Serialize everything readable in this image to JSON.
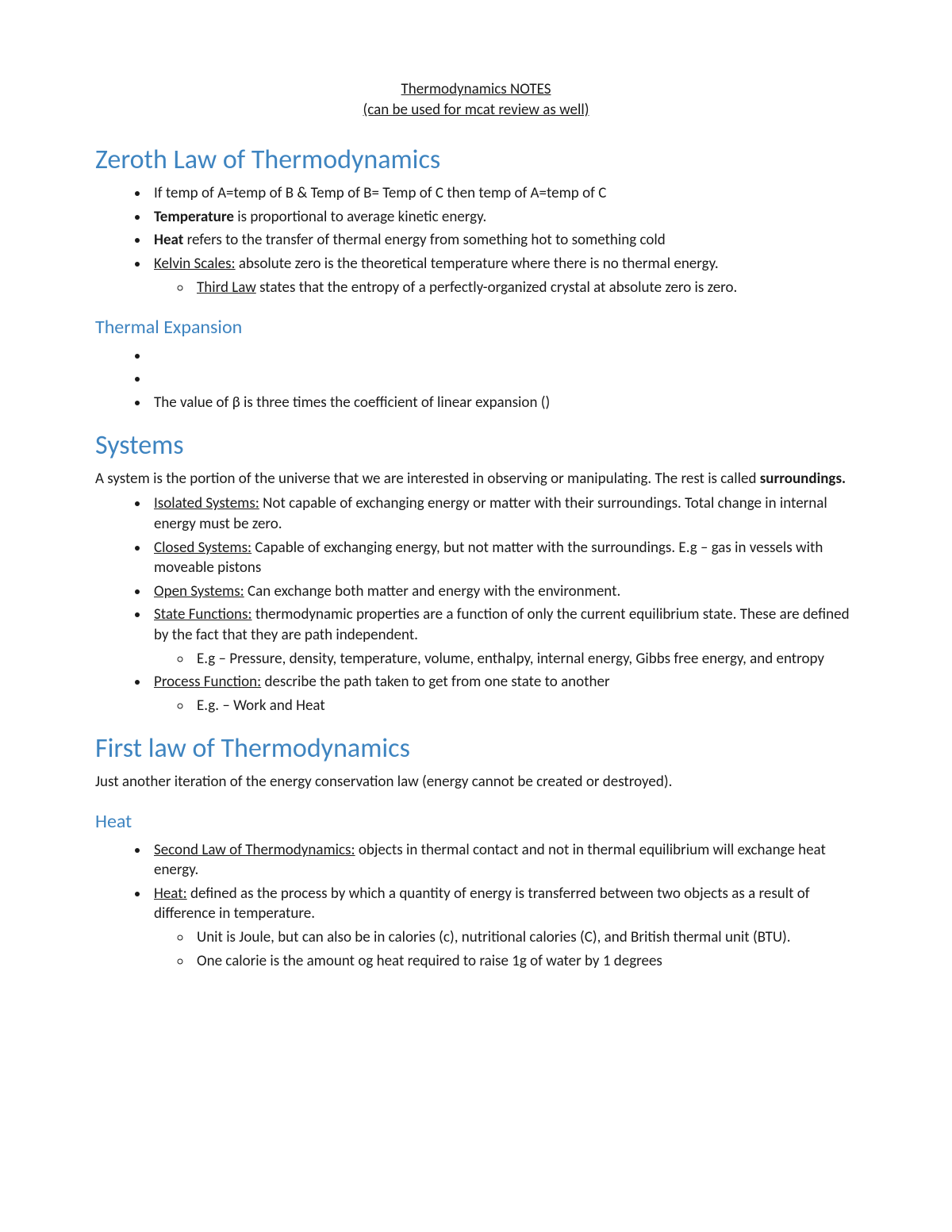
{
  "titleBlock": {
    "line1": "Thermodynamics NOTES",
    "line2": "(can be used for mcat review as well)"
  },
  "colors": {
    "heading": "#3e84c0",
    "text": "#1a1a1a",
    "background": "#ffffff"
  },
  "sections": {
    "zeroth": {
      "heading": "Zeroth Law of Thermodynamics",
      "b1": "If temp of A=temp of B & Temp of B= Temp of C then temp of A=temp of C",
      "b2_bold": "Temperature",
      "b2_rest": " is proportional to average kinetic energy.",
      "b3_bold": "Heat",
      "b3_rest": " refers to the transfer of thermal energy from something hot to something cold",
      "b4_u": "Kelvin Scales:",
      "b4_rest": " absolute zero is the theoretical temperature where there is no thermal energy.",
      "b4_sub_u": "Third Law",
      "b4_sub_rest": " states that the entropy of a perfectly-organized crystal at absolute zero is zero."
    },
    "thermalExpansion": {
      "heading": "Thermal Expansion",
      "b1": "",
      "b2": "",
      "b3": "The value of β is three times the coefficient of linear expansion ()"
    },
    "systems": {
      "heading": "Systems",
      "intro_a": "A system is the portion of the universe that we are interested in observing or manipulating. The rest is called ",
      "intro_bold": "surroundings.",
      "b1_u": "Isolated Systems:",
      "b1_rest": " Not capable of exchanging energy or matter with their surroundings. Total change in internal energy must be zero.",
      "b2_u": "Closed Systems:",
      "b2_rest": " Capable of exchanging energy, but not matter with the surroundings. E.g – gas in vessels with moveable pistons",
      "b3_u": "Open Systems:",
      "b3_rest": " Can exchange both matter and energy with the environment.",
      "b4_u": "State Functions:",
      "b4_rest": " thermodynamic properties are a function of only the current equilibrium state. These are defined by the fact that they are path independent.",
      "b4_sub": "E.g – Pressure, density, temperature, volume, enthalpy, internal energy, Gibbs free energy, and entropy",
      "b5_u": "Process Function:",
      "b5_rest": " describe the path taken to get from one state to another",
      "b5_sub": "E.g. – Work and Heat"
    },
    "firstLaw": {
      "heading": "First law of Thermodynamics",
      "intro": "Just another iteration of the energy conservation law (energy cannot be created or destroyed)."
    },
    "heat": {
      "heading": "Heat",
      "b1_u": "Second Law of Thermodynamics:",
      "b1_rest": " objects in thermal contact and not in thermal equilibrium will exchange heat energy.",
      "b2_u": "Heat:",
      "b2_rest": " defined as the process by which a quantity of energy is transferred between two objects as a result of difference in temperature.",
      "b2_sub1": "Unit is Joule, but can also be in calories (c), nutritional calories (C), and British thermal unit (BTU).",
      "b2_sub2": "One calorie is the amount og heat required to raise 1g of water by 1 degrees"
    }
  }
}
